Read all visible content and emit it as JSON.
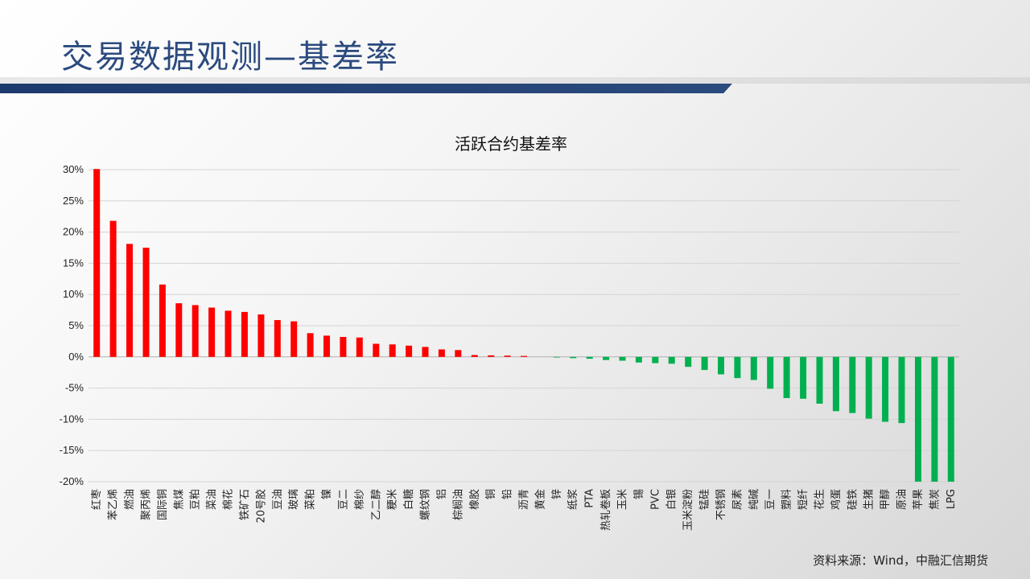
{
  "slide": {
    "title": "交易数据观测—基差率",
    "source": "资料来源：Wind，中融汇信期货"
  },
  "colors": {
    "positive": "#ff0000",
    "negative": "#00b050",
    "title": "#2b4a7e"
  },
  "chart_data": {
    "type": "bar",
    "title": "活跃合约基差率",
    "xlabel": "",
    "ylabel": "",
    "ylim": [
      -20,
      30
    ],
    "yticks": [
      "30%",
      "25%",
      "20%",
      "15%",
      "10%",
      "5%",
      "0%",
      "-5%",
      "-10%",
      "-15%",
      "-20%"
    ],
    "grid": true,
    "categories": [
      "红枣",
      "苯乙烯",
      "燃油",
      "聚丙烯",
      "国际铜",
      "焦煤",
      "豆粕",
      "菜油",
      "棉花",
      "铁矿石",
      "20号胶",
      "豆油",
      "玻璃",
      "菜粕",
      "镍",
      "豆二",
      "棉纱",
      "乙二醇",
      "粳米",
      "白糖",
      "螺纹钢",
      "铝",
      "棕榈油",
      "橡胶",
      "铜",
      "铅",
      "沥青",
      "黄金",
      "锌",
      "纸浆",
      "PTA",
      "热轧卷板",
      "玉米",
      "锡",
      "PVC",
      "白银",
      "玉米淀粉",
      "锰硅",
      "不锈钢",
      "尿素",
      "纯碱",
      "豆一",
      "塑料",
      "短纤",
      "花生",
      "鸡蛋",
      "硅铁",
      "生猪",
      "甲醇",
      "原油",
      "苹果",
      "焦炭",
      "LPG"
    ],
    "values": [
      30.1,
      21.8,
      18.1,
      17.5,
      11.6,
      8.6,
      8.3,
      7.9,
      7.4,
      7.2,
      6.8,
      5.9,
      5.7,
      3.8,
      3.4,
      3.2,
      3.1,
      2.1,
      2.0,
      1.8,
      1.6,
      1.2,
      1.1,
      0.3,
      0.25,
      0.2,
      0.15,
      0.0,
      -0.1,
      -0.2,
      -0.3,
      -0.5,
      -0.6,
      -0.9,
      -1.0,
      -1.1,
      -1.6,
      -2.1,
      -2.8,
      -3.4,
      -3.7,
      -5.1,
      -6.6,
      -6.7,
      -7.5,
      -8.7,
      -9.0,
      -9.9,
      -10.4,
      -10.6,
      -20.0,
      -20.0,
      -20.0
    ]
  }
}
